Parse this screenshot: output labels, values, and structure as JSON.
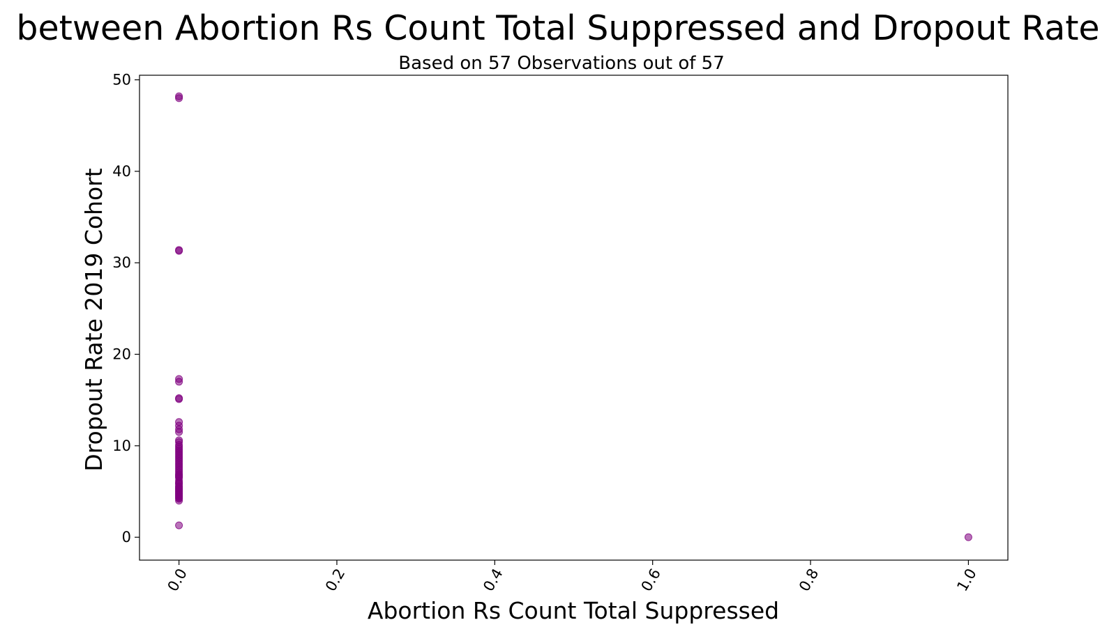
{
  "chart_data": {
    "type": "scatter",
    "title": "between Abortion Rs Count Total Suppressed and Dropout Rate",
    "subtitle": "Based on 57 Observations out of 57",
    "xlabel": "Abortion Rs Count Total Suppressed",
    "ylabel": "Dropout Rate 2019 Cohort",
    "xlim": [
      -0.05,
      1.05
    ],
    "ylim": [
      -2.5,
      50.5
    ],
    "x_ticks": [
      0.0,
      0.2,
      0.4,
      0.6,
      0.8,
      1.0
    ],
    "x_tick_labels": [
      "0.0",
      "0.2",
      "0.4",
      "0.6",
      "0.8",
      "1.0"
    ],
    "y_ticks": [
      0,
      10,
      20,
      30,
      40,
      50
    ],
    "y_tick_labels": [
      "0",
      "10",
      "20",
      "30",
      "40",
      "50"
    ],
    "grid": false,
    "point_color": "#800080",
    "point_alpha": 0.55,
    "series": [
      {
        "x": [
          0,
          0,
          0,
          0,
          0,
          0,
          0,
          0,
          0,
          0,
          0,
          0,
          0,
          0,
          0,
          0,
          0,
          0,
          0,
          0,
          0,
          0,
          0,
          0,
          0,
          0,
          0,
          0,
          0,
          0,
          0,
          0,
          0,
          0,
          0,
          0,
          0,
          0,
          0,
          0,
          0,
          0,
          0,
          0,
          0,
          0,
          0,
          0,
          0,
          0,
          0,
          0,
          0,
          0,
          0,
          0,
          1
        ],
        "y": [
          48.2,
          48.0,
          31.4,
          31.3,
          17.3,
          17.0,
          15.2,
          15.1,
          12.6,
          12.2,
          11.8,
          11.5,
          10.6,
          10.4,
          10.1,
          9.9,
          9.7,
          9.5,
          9.3,
          9.1,
          8.9,
          8.7,
          8.5,
          8.3,
          8.1,
          7.9,
          7.7,
          7.5,
          7.3,
          7.1,
          6.9,
          6.8,
          6.7,
          6.6,
          6.5,
          6.2,
          6.0,
          5.9,
          5.8,
          5.6,
          5.5,
          5.4,
          5.3,
          5.2,
          5.1,
          5.0,
          4.9,
          4.8,
          4.7,
          4.6,
          4.5,
          4.4,
          4.3,
          4.2,
          4.0,
          1.3,
          0.0
        ]
      }
    ]
  }
}
